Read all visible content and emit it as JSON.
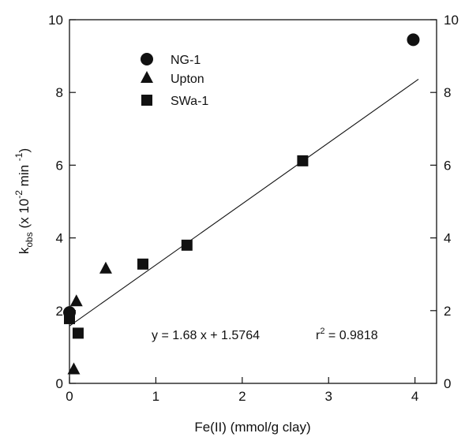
{
  "chart_data": {
    "type": "scatter",
    "xlabel": "Fe(II) (mmol/g clay)",
    "ylabel": "k_obs (x 10^-2 min^-1)",
    "ylabel_parts": {
      "main": "k",
      "sub": "obs",
      "pre": " (x 10",
      "sup": "-2",
      "mid": " min ",
      "sup2": "-1",
      "post": ")"
    },
    "xlim": [
      0,
      4.25
    ],
    "ylim": [
      0,
      10
    ],
    "xticks": [
      0,
      1,
      2,
      3,
      4
    ],
    "yticks": [
      0,
      2,
      4,
      6,
      8,
      10
    ],
    "grid": false,
    "legend_position": "top-left",
    "series": [
      {
        "name": "NG-1",
        "marker": "circle",
        "points": [
          [
            0.0,
            1.95
          ],
          [
            3.98,
            9.45
          ]
        ]
      },
      {
        "name": "Upton",
        "marker": "triangle",
        "points": [
          [
            0.05,
            0.38
          ],
          [
            0.08,
            2.25
          ],
          [
            0.42,
            3.15
          ]
        ]
      },
      {
        "name": "SWa-1",
        "marker": "square",
        "points": [
          [
            0.0,
            1.78
          ],
          [
            0.1,
            1.38
          ],
          [
            0.85,
            3.28
          ],
          [
            1.36,
            3.8
          ],
          [
            2.7,
            6.12
          ]
        ]
      }
    ],
    "fit_line": {
      "slope": 1.68,
      "intercept": 1.5764,
      "x_range": [
        0.0,
        4.04
      ]
    },
    "annotations": {
      "equation": "y = 1.68 x + 1.5764",
      "r2_prefix": "r",
      "r2_sup": "2",
      "r2_value": " = 0.9818"
    }
  }
}
